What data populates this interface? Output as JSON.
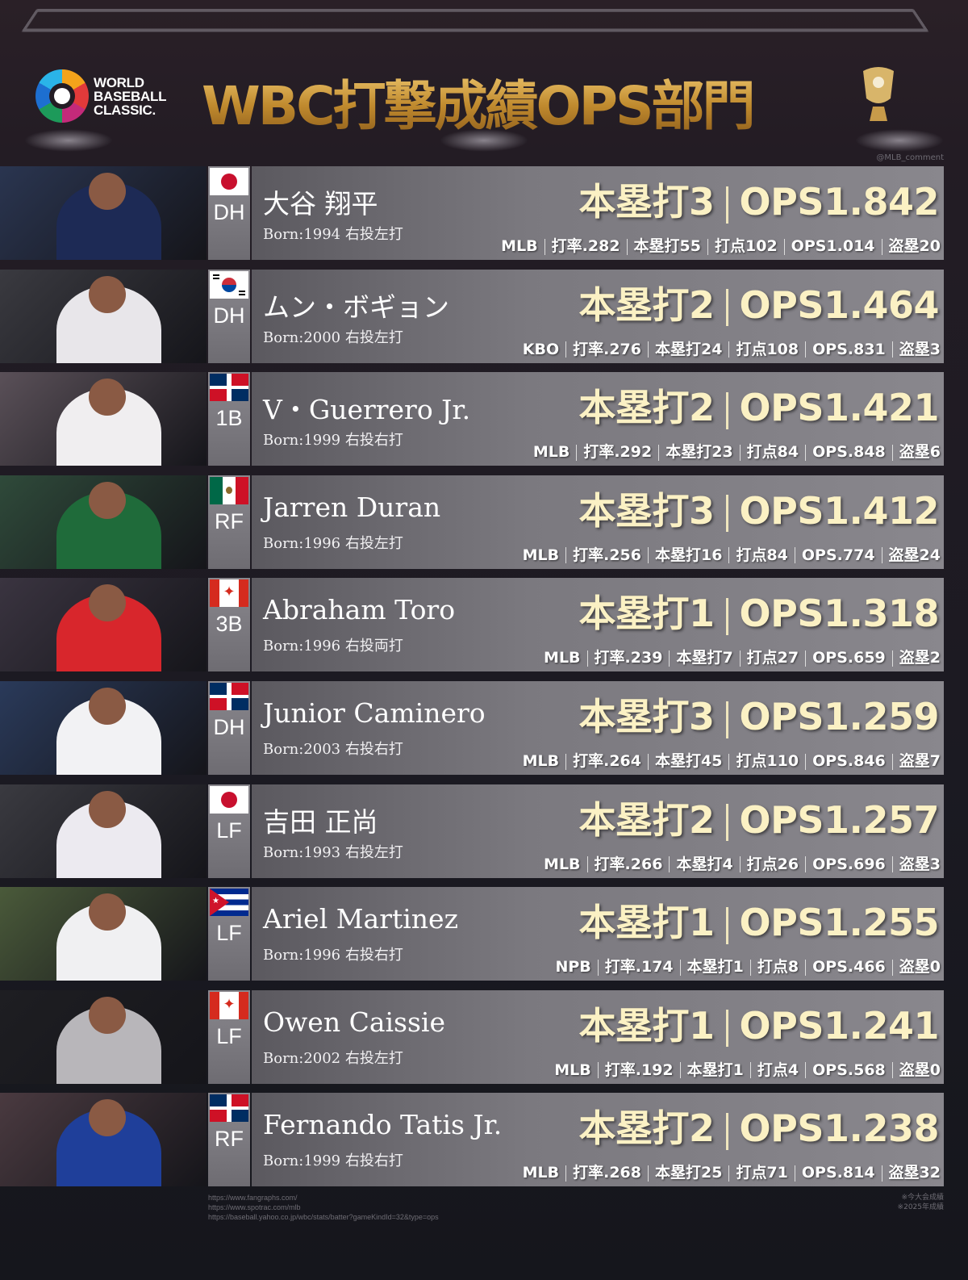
{
  "header": {
    "logo_text": [
      "WORLD",
      "BASEBALL",
      "CLASSIC."
    ],
    "title": "WBC打撃成績OPS部門",
    "credit": "@MLB_comment"
  },
  "colors": {
    "title_gold": "#d9a547",
    "stat_cream": "#fbf1c4",
    "panel": "#7b797f"
  },
  "players": [
    {
      "name": "大谷 翔平",
      "born": "Born:1994 右投左打",
      "pos": "DH",
      "flag": "japan",
      "hr": "本塁打3",
      "ops": "OPS1.842",
      "stats": [
        "MLB",
        "打率.282",
        "本塁打55",
        "打点102",
        "OPS1.014",
        "盗塁20"
      ],
      "jersey": "#1d2a55"
    },
    {
      "name": "ムン・ボギョン",
      "born": "Born:2000 右投左打",
      "pos": "DH",
      "flag": "korea",
      "hr": "本塁打2",
      "ops": "OPS1.464",
      "stats": [
        "KBO",
        "打率.276",
        "本塁打24",
        "打点108",
        "OPS.831",
        "盗塁3"
      ],
      "jersey": "#e8e6ea"
    },
    {
      "name": "V・Guerrero Jr.",
      "born": "Born:1999 右投右打",
      "pos": "1B",
      "flag": "dominican",
      "hr": "本塁打2",
      "ops": "OPS1.421",
      "stats": [
        "MLB",
        "打率.292",
        "本塁打23",
        "打点84",
        "OPS.848",
        "盗塁6"
      ],
      "jersey": "#f0eef0"
    },
    {
      "name": "Jarren Duran",
      "born": "Born:1996 右投左打",
      "pos": "RF",
      "flag": "mexico",
      "hr": "本塁打3",
      "ops": "OPS1.412",
      "stats": [
        "MLB",
        "打率.256",
        "本塁打16",
        "打点84",
        "OPS.774",
        "盗塁24"
      ],
      "jersey": "#1f6b3a"
    },
    {
      "name": "Abraham Toro",
      "born": "Born:1996 右投両打",
      "pos": "3B",
      "flag": "canada",
      "hr": "本塁打1",
      "ops": "OPS1.318",
      "stats": [
        "MLB",
        "打率.239",
        "本塁打7",
        "打点27",
        "OPS.659",
        "盗塁2"
      ],
      "jersey": "#d8262c"
    },
    {
      "name": "Junior Caminero",
      "born": "Born:2003 右投右打",
      "pos": "DH",
      "flag": "dominican",
      "hr": "本塁打3",
      "ops": "OPS1.259",
      "stats": [
        "MLB",
        "打率.264",
        "本塁打45",
        "打点110",
        "OPS.846",
        "盗塁7"
      ],
      "jersey": "#f2f2f4"
    },
    {
      "name": "吉田 正尚",
      "born": "Born:1993 右投左打",
      "pos": "LF",
      "flag": "japan",
      "hr": "本塁打2",
      "ops": "OPS1.257",
      "stats": [
        "MLB",
        "打率.266",
        "本塁打4",
        "打点26",
        "OPS.696",
        "盗塁3"
      ],
      "jersey": "#eceaf0"
    },
    {
      "name": "Ariel Martinez",
      "born": "Born:1996 右投右打",
      "pos": "LF",
      "flag": "cuba",
      "hr": "本塁打1",
      "ops": "OPS1.255",
      "stats": [
        "NPB",
        "打率.174",
        "本塁打1",
        "打点8",
        "OPS.466",
        "盗塁0"
      ],
      "jersey": "#f0f0f2"
    },
    {
      "name": "Owen Caissie",
      "born": "Born:2002 右投左打",
      "pos": "LF",
      "flag": "canada",
      "hr": "本塁打1",
      "ops": "OPS1.241",
      "stats": [
        "MLB",
        "打率.192",
        "本塁打1",
        "打点4",
        "OPS.568",
        "盗塁0"
      ],
      "jersey": "#b8b6ba"
    },
    {
      "name": "Fernando Tatis Jr.",
      "born": "Born:1999 右投右打",
      "pos": "RF",
      "flag": "dominican",
      "hr": "本塁打2",
      "ops": "OPS1.238",
      "stats": [
        "MLB",
        "打率.268",
        "本塁打25",
        "打点71",
        "OPS.814",
        "盗塁32"
      ],
      "jersey": "#1f3f9a"
    }
  ],
  "footer": {
    "sources": [
      "https://www.fangraphs.com/",
      "https://www.spotrac.com/mlb",
      "https://baseball.yahoo.co.jp/wbc/stats/batter?gameKindId=32&type=ops"
    ],
    "notes": [
      "※今大会成績",
      "※2025年成績"
    ]
  }
}
